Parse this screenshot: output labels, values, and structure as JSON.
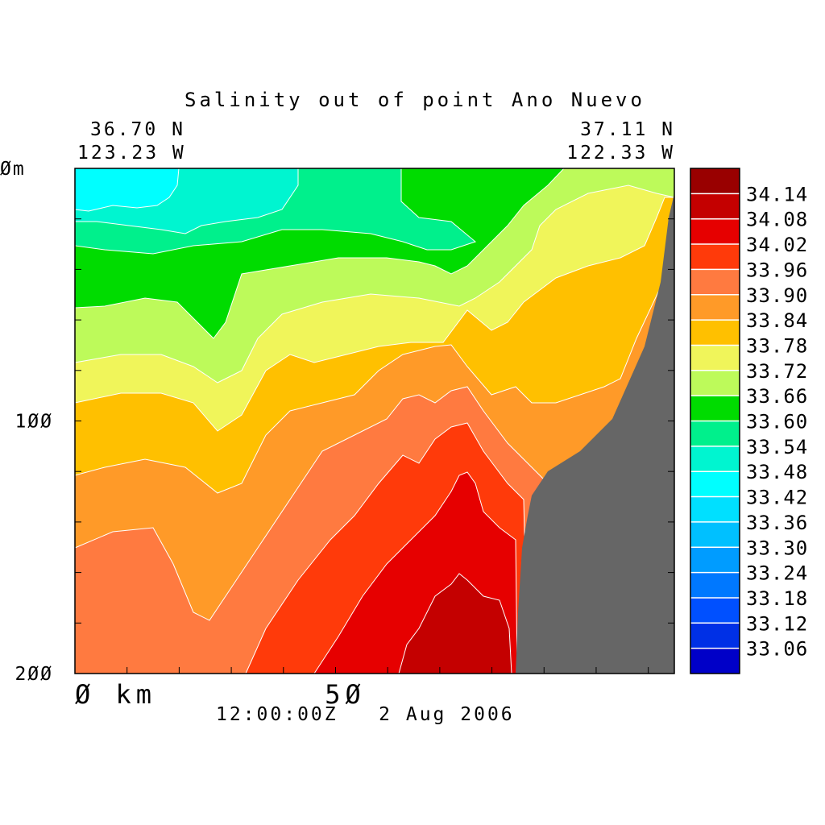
{
  "chart_data": {
    "type": "heatmap",
    "title": "Salinity out of point Ano Nuevo",
    "location": {
      "start": {
        "lat": "36.70 N",
        "lon": "123.23 W"
      },
      "end": {
        "lat": "37.11 N",
        "lon": "122.33 W"
      }
    },
    "timestamp": "12:00:00Z   2 Aug 2006",
    "xlabel": "",
    "ylabel": "",
    "x_tick_labels": [
      "Ø km",
      "5Ø"
    ],
    "x_ticks": [
      0,
      50
    ],
    "xlim": [
      0,
      115
    ],
    "y_tick_labels": [
      "Øm",
      "1ØØ",
      "2ØØ"
    ],
    "y_ticks": [
      0,
      100,
      200
    ],
    "ylim": [
      0,
      200
    ],
    "colorbar_levels": [
      "34.14",
      "34.08",
      "34.02",
      "33.96",
      "33.90",
      "33.84",
      "33.78",
      "33.72",
      "33.66",
      "33.60",
      "33.54",
      "33.48",
      "33.42",
      "33.36",
      "33.30",
      "33.24",
      "33.18",
      "33.12",
      "33.06"
    ],
    "colorbar_colors": [
      "#990000",
      "#c40000",
      "#e60000",
      "#ff3a0a",
      "#ff7a40",
      "#ff9a28",
      "#ffc000",
      "#f0f55a",
      "#bdfa5a",
      "#00dc00",
      "#00f08c",
      "#00f5d0",
      "#00ffff",
      "#00e0ff",
      "#00c0ff",
      "#009cff",
      "#0078ff",
      "#0050ff",
      "#0030e6",
      "#0000c8"
    ],
    "terrain_color": "#666666"
  }
}
